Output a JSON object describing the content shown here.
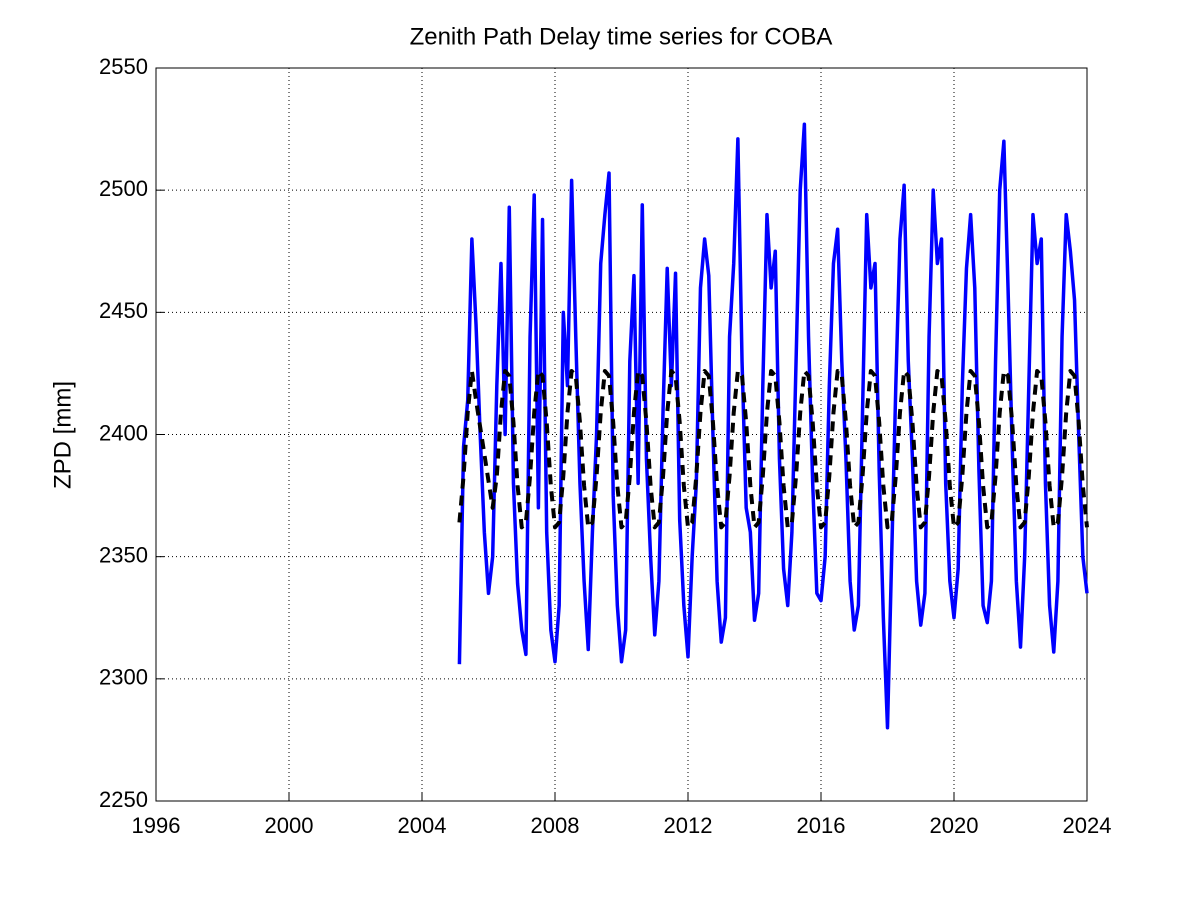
{
  "chart_data": {
    "type": "line",
    "title": "Zenith Path Delay time series for COBA",
    "y_label": "ZPD [mm]",
    "x": [
      2005.125,
      2005.25,
      2005.375,
      2005.5,
      2005.625,
      2005.75,
      2005.875,
      2006,
      2006.125,
      2006.25,
      2006.375,
      2006.5,
      2006.625,
      2006.75,
      2006.875,
      2007,
      2007.125,
      2007.25,
      2007.375,
      2007.5,
      2007.625,
      2007.75,
      2007.875,
      2008,
      2008.125,
      2008.25,
      2008.375,
      2008.5,
      2008.625,
      2008.75,
      2008.875,
      2009,
      2009.125,
      2009.25,
      2009.375,
      2009.5,
      2009.625,
      2009.75,
      2009.875,
      2010,
      2010.125,
      2010.25,
      2010.375,
      2010.5,
      2010.625,
      2010.75,
      2010.875,
      2011,
      2011.125,
      2011.25,
      2011.375,
      2011.5,
      2011.625,
      2011.75,
      2011.875,
      2012,
      2012.125,
      2012.25,
      2012.375,
      2012.5,
      2012.625,
      2012.75,
      2012.875,
      2013,
      2013.125,
      2013.25,
      2013.375,
      2013.5,
      2013.625,
      2013.75,
      2013.875,
      2014,
      2014.125,
      2014.25,
      2014.375,
      2014.5,
      2014.625,
      2014.75,
      2014.875,
      2015,
      2015.125,
      2015.25,
      2015.375,
      2015.5,
      2015.625,
      2015.75,
      2015.875,
      2016,
      2016.125,
      2016.25,
      2016.375,
      2016.5,
      2016.625,
      2016.75,
      2016.875,
      2017,
      2017.125,
      2017.25,
      2017.375,
      2017.5,
      2017.625,
      2017.75,
      2017.875,
      2018,
      2018.125,
      2018.25,
      2018.375,
      2018.5,
      2018.625,
      2018.75,
      2018.875,
      2019,
      2019.125,
      2019.25,
      2019.375,
      2019.5,
      2019.625,
      2019.75,
      2019.875,
      2020,
      2020.125,
      2020.25,
      2020.375,
      2020.5,
      2020.625,
      2020.75,
      2020.875,
      2021,
      2021.125,
      2021.25,
      2021.375,
      2021.5,
      2021.625,
      2021.75,
      2021.875,
      2022,
      2022.125,
      2022.25,
      2022.375,
      2022.5,
      2022.625,
      2022.75,
      2022.875,
      2023,
      2023.125,
      2023.25,
      2023.375,
      2023.5,
      2023.625,
      2023.75,
      2023.875,
      2024
    ],
    "series": [
      {
        "color": "#0000ff",
        "dash": false,
        "values": [
          2306,
          2395,
          2414,
          2480,
          2445,
          2400,
          2360,
          2335,
          2350,
          2420,
          2470,
          2400,
          2493,
          2380,
          2339,
          2320,
          2310,
          2440,
          2498,
          2370,
          2488,
          2360,
          2320,
          2307,
          2330,
          2450,
          2420,
          2504,
          2440,
          2380,
          2340,
          2312,
          2360,
          2400,
          2470,
          2490,
          2507,
          2375,
          2330,
          2307,
          2320,
          2430,
          2465,
          2380,
          2494,
          2390,
          2350,
          2318,
          2340,
          2410,
          2468,
          2420,
          2466,
          2365,
          2330,
          2309,
          2350,
          2380,
          2460,
          2480,
          2465,
          2400,
          2340,
          2315,
          2325,
          2440,
          2470,
          2521,
          2430,
          2370,
          2360,
          2324,
          2335,
          2420,
          2490,
          2460,
          2475,
          2390,
          2345,
          2330,
          2360,
          2430,
          2500,
          2527,
          2440,
          2380,
          2335,
          2332,
          2350,
          2420,
          2470,
          2484,
          2430,
          2390,
          2340,
          2320,
          2330,
          2410,
          2490,
          2460,
          2470,
          2385,
          2325,
          2280,
          2350,
          2420,
          2480,
          2502,
          2430,
          2390,
          2340,
          2322,
          2335,
          2440,
          2500,
          2470,
          2480,
          2380,
          2340,
          2325,
          2345,
          2420,
          2468,
          2490,
          2460,
          2385,
          2330,
          2323,
          2340,
          2430,
          2500,
          2520,
          2460,
          2395,
          2340,
          2313,
          2350,
          2420,
          2490,
          2470,
          2480,
          2380,
          2330,
          2311,
          2340,
          2440,
          2490,
          2475,
          2455,
          2400,
          2350,
          2335
        ]
      },
      {
        "color": "#000000",
        "dash": true,
        "values": [
          2364,
          2383,
          2409,
          2426,
          2414,
          2403,
          2392,
          2381,
          2370,
          2383,
          2409,
          2426,
          2424,
          2405,
          2379,
          2362,
          2364,
          2383,
          2409,
          2426,
          2424,
          2405,
          2379,
          2362,
          2364,
          2383,
          2409,
          2426,
          2424,
          2405,
          2379,
          2362,
          2364,
          2383,
          2409,
          2426,
          2424,
          2405,
          2379,
          2362,
          2364,
          2383,
          2409,
          2426,
          2424,
          2405,
          2379,
          2362,
          2364,
          2383,
          2409,
          2426,
          2424,
          2405,
          2379,
          2362,
          2364,
          2383,
          2409,
          2426,
          2424,
          2405,
          2379,
          2362,
          2364,
          2383,
          2409,
          2426,
          2424,
          2405,
          2379,
          2362,
          2364,
          2383,
          2409,
          2426,
          2424,
          2405,
          2379,
          2362,
          2364,
          2383,
          2409,
          2426,
          2424,
          2405,
          2379,
          2362,
          2364,
          2383,
          2409,
          2426,
          2424,
          2405,
          2379,
          2362,
          2364,
          2383,
          2409,
          2426,
          2424,
          2405,
          2379,
          2362,
          2364,
          2383,
          2409,
          2426,
          2424,
          2405,
          2379,
          2362,
          2364,
          2383,
          2409,
          2426,
          2424,
          2405,
          2379,
          2362,
          2364,
          2383,
          2409,
          2426,
          2424,
          2405,
          2379,
          2362,
          2364,
          2383,
          2409,
          2426,
          2424,
          2405,
          2379,
          2362,
          2364,
          2383,
          2409,
          2426,
          2424,
          2405,
          2379,
          2362,
          2364,
          2383,
          2409,
          2426,
          2424,
          2405,
          2379,
          2362
        ]
      }
    ],
    "xlim": [
      1996,
      2024
    ],
    "xticks": [
      1996,
      2000,
      2004,
      2008,
      2012,
      2016,
      2020,
      2024
    ],
    "ylim": [
      2250,
      2550
    ],
    "yticks": [
      2250,
      2300,
      2350,
      2400,
      2450,
      2500,
      2550
    ],
    "grid": true
  }
}
